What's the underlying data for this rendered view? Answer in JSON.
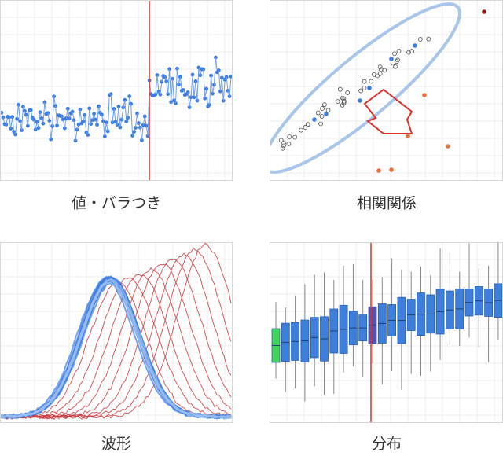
{
  "panels": [
    {
      "caption": "値・バラつき"
    },
    {
      "caption": "相関関係"
    },
    {
      "caption": "波形"
    },
    {
      "caption": "分布"
    }
  ]
}
